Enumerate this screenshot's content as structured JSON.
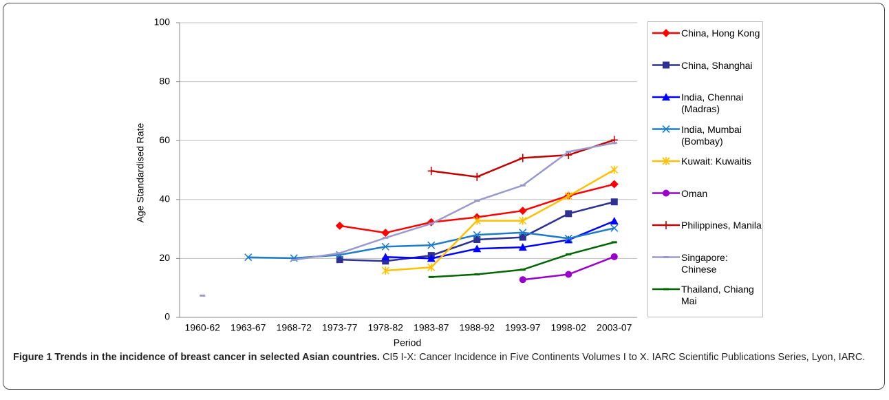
{
  "chart_data": {
    "type": "line",
    "y_label": "Age Standardised Rate",
    "x_label": "Period",
    "categories": [
      "1960-62",
      "1963-67",
      "1968-72",
      "1973-77",
      "1978-82",
      "1983-87",
      "1988-92",
      "1993-97",
      "1998-02",
      "2003-07"
    ],
    "ylim": [
      0,
      100
    ],
    "yticks": [
      0,
      20,
      40,
      60,
      80,
      100
    ],
    "grid": true,
    "series": [
      {
        "name": "China, Hong Kong",
        "color": "#ff0000",
        "marker": "diamond",
        "values": [
          null,
          null,
          null,
          31.1,
          28.7,
          32.3,
          34,
          36.2,
          41.3,
          45.2
        ]
      },
      {
        "name": "China, Shanghai",
        "color": "#2e3192",
        "marker": "square",
        "values": [
          null,
          null,
          null,
          19.6,
          19.1,
          21,
          26.4,
          27.2,
          35.2,
          39.2
        ]
      },
      {
        "name": "India, Chennai (Madras)",
        "color": "#0000ff",
        "marker": "triangle",
        "values": [
          null,
          null,
          null,
          null,
          20.5,
          20,
          23.3,
          23.8,
          26.3,
          32.7
        ]
      },
      {
        "name": "India, Mumbai (Bombay)",
        "color": "#1f7dc8",
        "marker": "x",
        "values": [
          null,
          20.4,
          20.1,
          21.2,
          24,
          24.5,
          28,
          28.8,
          26.8,
          30.3
        ]
      },
      {
        "name": "Kuwait: Kuwaitis",
        "color": "#ffc000",
        "marker": "star",
        "values": [
          null,
          null,
          null,
          null,
          15.9,
          17,
          32.8,
          32.8,
          41.2,
          50.1
        ]
      },
      {
        "name": "Oman",
        "color": "#9900cc",
        "marker": "circle",
        "values": [
          null,
          null,
          null,
          null,
          null,
          null,
          null,
          12.8,
          14.6,
          20.6
        ]
      },
      {
        "name": "Philippines, Manila",
        "color": "#c00000",
        "marker": "plus",
        "values": [
          null,
          null,
          null,
          null,
          null,
          49.7,
          47.7,
          54.1,
          55.1,
          60.2
        ]
      },
      {
        "name": "Singapore: Chinese",
        "color": "#9999cc",
        "marker": "dash",
        "values": [
          7.4,
          null,
          19.5,
          21.8,
          27,
          31.8,
          39.6,
          44.8,
          56.2,
          59.2
        ]
      },
      {
        "name": "Thailand, Chiang Mai",
        "color": "#006600",
        "marker": "dash",
        "values": [
          null,
          null,
          null,
          null,
          null,
          13.7,
          14.6,
          16.2,
          21.4,
          25.5
        ]
      }
    ]
  },
  "caption": {
    "label": "Figure 1 Trends in the incidence of breast cancer in selected Asian countries.",
    "text": "CI5 I-X: Cancer Incidence in Five Continents Volumes I to X. IARC  Scientific Publications Series, Lyon, IARC."
  }
}
